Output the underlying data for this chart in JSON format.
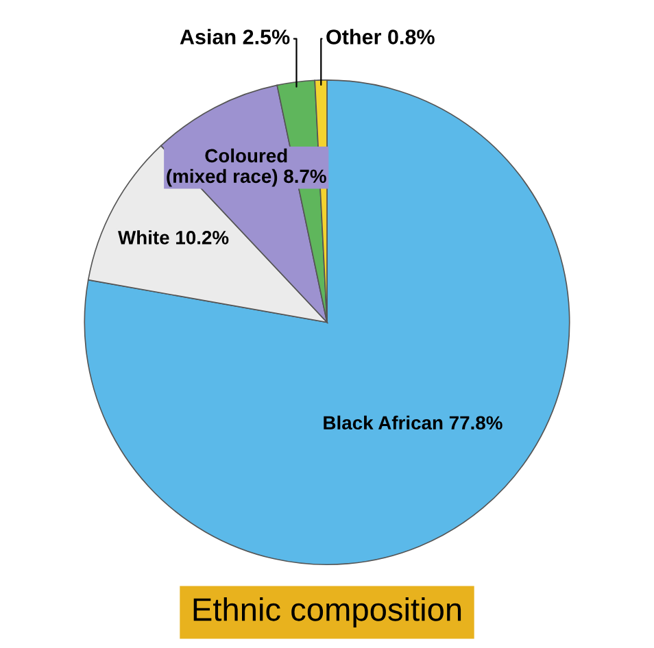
{
  "chart_data": {
    "type": "pie",
    "title": "Ethnic composition",
    "categories": [
      "Black African",
      "White",
      "Coloured\n(mixed race)",
      "Asian",
      "Other"
    ],
    "values": [
      77.8,
      10.2,
      8.7,
      2.5,
      0.8
    ],
    "colors": [
      "#5bb9e9",
      "#ebebeb",
      "#9d92d0",
      "#5fb65c",
      "#f3d32f"
    ],
    "value_labels": [
      "77.8%",
      "10.2%",
      "8.7%",
      "2.5%",
      "0.8%"
    ]
  }
}
